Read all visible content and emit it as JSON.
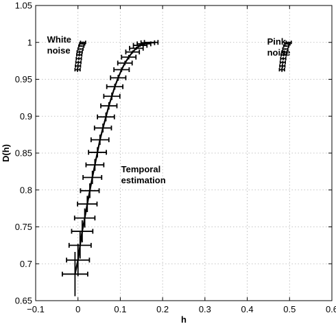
{
  "chart_data": {
    "type": "scatter",
    "title": "",
    "xlabel": "h",
    "ylabel": "D(h)",
    "xlim": [
      -0.1,
      0.6
    ],
    "ylim": [
      0.65,
      1.05
    ],
    "xticks": [
      -0.1,
      0,
      0.1,
      0.2,
      0.3,
      0.4,
      0.5,
      0.6
    ],
    "xtick_labels": [
      "−0.1",
      "0",
      "0.1",
      "0.2",
      "0.3",
      "0.4",
      "0.5",
      "0.6"
    ],
    "yticks": [
      0.65,
      0.7,
      0.75,
      0.8,
      0.85,
      0.9,
      0.95,
      1,
      1.05
    ],
    "ytick_labels": [
      "0.65",
      "0.7",
      "0.75",
      "0.8",
      "0.85",
      "0.9",
      "0.95",
      "1",
      "1.05"
    ],
    "grid": true,
    "colors": {
      "line": "#000000",
      "grid": "#b0b0b0",
      "background": "#ffffff"
    },
    "annotations": [
      {
        "lines": [
          "White",
          "noise"
        ],
        "x": -0.073,
        "y": 1.0
      },
      {
        "lines": [
          "Pink",
          "noise"
        ],
        "x": 0.447,
        "y": 0.997
      },
      {
        "lines": [
          "Temporal",
          "estimation"
        ],
        "x": 0.102,
        "y": 0.824
      }
    ],
    "series": [
      {
        "style": "errorbar-line",
        "points": [
          {
            "x": -0.007,
            "y": 0.686,
            "xerr": 0.03,
            "yerr": 0.03
          },
          {
            "x": 0.0,
            "y": 0.705,
            "xerr": 0.027,
            "yerr": 0.022
          },
          {
            "x": 0.005,
            "y": 0.725,
            "xerr": 0.026,
            "yerr": 0.018
          },
          {
            "x": 0.01,
            "y": 0.744,
            "xerr": 0.025,
            "yerr": 0.015
          },
          {
            "x": 0.016,
            "y": 0.762,
            "xerr": 0.024,
            "yerr": 0.013
          },
          {
            "x": 0.022,
            "y": 0.781,
            "xerr": 0.023,
            "yerr": 0.011
          },
          {
            "x": 0.028,
            "y": 0.799,
            "xerr": 0.022,
            "yerr": 0.01
          },
          {
            "x": 0.034,
            "y": 0.817,
            "xerr": 0.022,
            "yerr": 0.009
          },
          {
            "x": 0.04,
            "y": 0.834,
            "xerr": 0.021,
            "yerr": 0.008
          },
          {
            "x": 0.046,
            "y": 0.851,
            "xerr": 0.021,
            "yerr": 0.007
          },
          {
            "x": 0.052,
            "y": 0.868,
            "xerr": 0.021,
            "yerr": 0.007
          },
          {
            "x": 0.059,
            "y": 0.884,
            "xerr": 0.02,
            "yerr": 0.006
          },
          {
            "x": 0.066,
            "y": 0.899,
            "xerr": 0.02,
            "yerr": 0.006
          },
          {
            "x": 0.073,
            "y": 0.914,
            "xerr": 0.019,
            "yerr": 0.005
          },
          {
            "x": 0.08,
            "y": 0.927,
            "xerr": 0.019,
            "yerr": 0.005
          },
          {
            "x": 0.087,
            "y": 0.94,
            "xerr": 0.019,
            "yerr": 0.004
          },
          {
            "x": 0.095,
            "y": 0.952,
            "xerr": 0.018,
            "yerr": 0.004
          },
          {
            "x": 0.103,
            "y": 0.963,
            "xerr": 0.018,
            "yerr": 0.003
          },
          {
            "x": 0.111,
            "y": 0.972,
            "xerr": 0.017,
            "yerr": 0.003
          },
          {
            "x": 0.12,
            "y": 0.98,
            "xerr": 0.017,
            "yerr": 0.003
          },
          {
            "x": 0.129,
            "y": 0.987,
            "xerr": 0.016,
            "yerr": 0.002
          },
          {
            "x": 0.138,
            "y": 0.992,
            "xerr": 0.016,
            "yerr": 0.002
          },
          {
            "x": 0.147,
            "y": 0.996,
            "xerr": 0.016,
            "yerr": 0.002
          },
          {
            "x": 0.156,
            "y": 0.998,
            "xerr": 0.016,
            "yerr": 0.002
          },
          {
            "x": 0.165,
            "y": 0.9995,
            "xerr": 0.016,
            "yerr": 0.001
          },
          {
            "x": 0.173,
            "y": 1.0,
            "xerr": 0.016,
            "yerr": 0.001
          }
        ]
      },
      {
        "style": "errorbar-cluster",
        "points": [
          {
            "x": -0.001,
            "y": 0.963,
            "xerr": 0.006,
            "yerr": 0.003
          },
          {
            "x": 0.0,
            "y": 0.968,
            "xerr": 0.006,
            "yerr": 0.003
          },
          {
            "x": 0.001,
            "y": 0.973,
            "xerr": 0.006,
            "yerr": 0.002
          },
          {
            "x": 0.002,
            "y": 0.978,
            "xerr": 0.006,
            "yerr": 0.002
          },
          {
            "x": 0.003,
            "y": 0.983,
            "xerr": 0.006,
            "yerr": 0.002
          },
          {
            "x": 0.004,
            "y": 0.987,
            "xerr": 0.006,
            "yerr": 0.002
          },
          {
            "x": 0.006,
            "y": 0.991,
            "xerr": 0.006,
            "yerr": 0.001
          },
          {
            "x": 0.008,
            "y": 0.995,
            "xerr": 0.006,
            "yerr": 0.001
          },
          {
            "x": 0.01,
            "y": 0.998,
            "xerr": 0.006,
            "yerr": 0.001
          },
          {
            "x": 0.012,
            "y": 1.0,
            "xerr": 0.006,
            "yerr": 0.001
          }
        ]
      },
      {
        "style": "errorbar-cluster",
        "points": [
          {
            "x": 0.482,
            "y": 0.963,
            "xerr": 0.006,
            "yerr": 0.003
          },
          {
            "x": 0.483,
            "y": 0.968,
            "xerr": 0.006,
            "yerr": 0.003
          },
          {
            "x": 0.484,
            "y": 0.973,
            "xerr": 0.006,
            "yerr": 0.002
          },
          {
            "x": 0.485,
            "y": 0.978,
            "xerr": 0.006,
            "yerr": 0.002
          },
          {
            "x": 0.486,
            "y": 0.983,
            "xerr": 0.006,
            "yerr": 0.002
          },
          {
            "x": 0.488,
            "y": 0.987,
            "xerr": 0.006,
            "yerr": 0.002
          },
          {
            "x": 0.49,
            "y": 0.991,
            "xerr": 0.006,
            "yerr": 0.001
          },
          {
            "x": 0.492,
            "y": 0.995,
            "xerr": 0.006,
            "yerr": 0.001
          },
          {
            "x": 0.495,
            "y": 0.998,
            "xerr": 0.006,
            "yerr": 0.001
          },
          {
            "x": 0.498,
            "y": 1.0,
            "xerr": 0.006,
            "yerr": 0.001
          }
        ]
      }
    ]
  }
}
